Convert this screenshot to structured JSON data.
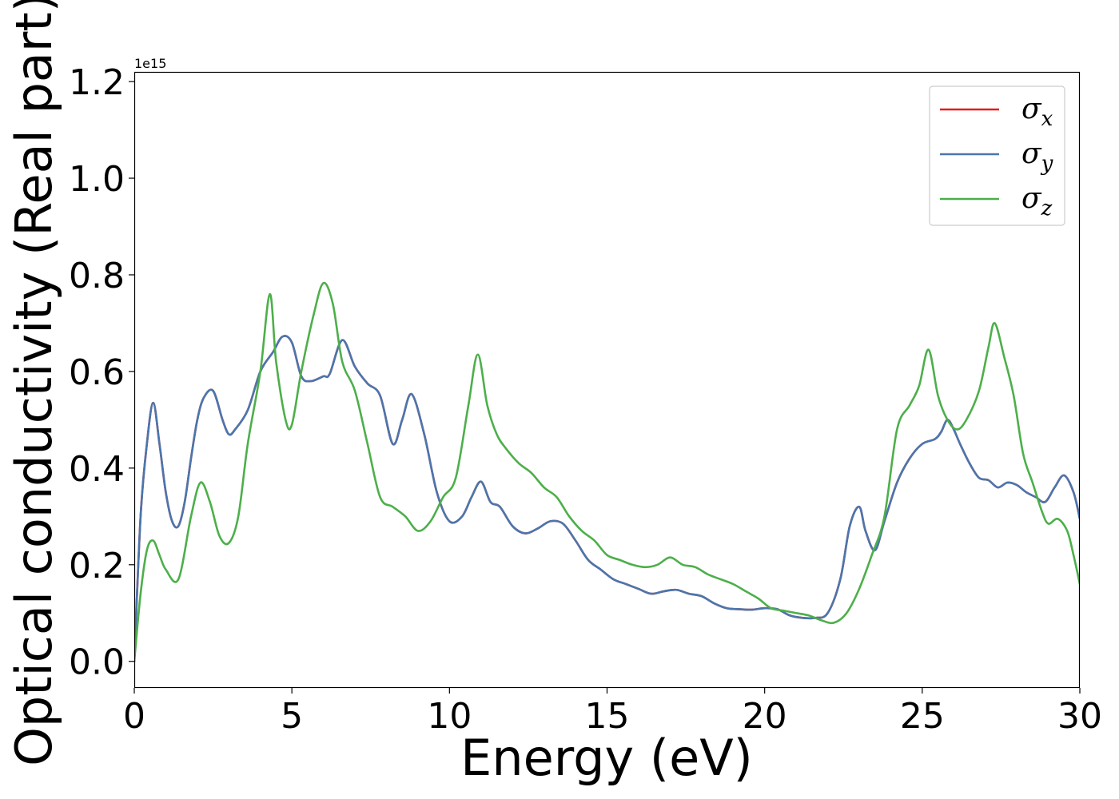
{
  "chart_data": {
    "type": "line",
    "xlabel": "Energy (eV)",
    "ylabel": "Optical conductivity (Real part)",
    "offset_text": "1e15",
    "xlim": [
      0,
      30
    ],
    "ylim": [
      -0.055,
      1.22
    ],
    "y_scale_factor": "1e15",
    "x_ticks": [
      0,
      5,
      10,
      15,
      20,
      25,
      30
    ],
    "x_tick_labels": [
      "0",
      "5",
      "10",
      "15",
      "20",
      "25",
      "30"
    ],
    "y_ticks": [
      0.0,
      0.2,
      0.4,
      0.6,
      0.8,
      1.0,
      1.2
    ],
    "y_tick_labels": [
      "0.0",
      "0.2",
      "0.4",
      "0.6",
      "0.8",
      "1.0",
      "1.2"
    ],
    "grid": false,
    "legend_position": "top-right",
    "series": [
      {
        "name": "σx",
        "legend_base": "σ",
        "legend_sub": "x",
        "color": "#e41a1c",
        "x": [
          0,
          0.2,
          0.4,
          0.6,
          0.8,
          1.0,
          1.2,
          1.4,
          1.6,
          1.8,
          2.0,
          2.2,
          2.5,
          2.8,
          3.0,
          3.2,
          3.6,
          4.0,
          4.4,
          4.7,
          5.0,
          5.3,
          5.6,
          6.0,
          6.2,
          6.6,
          7.0,
          7.4,
          7.8,
          8.2,
          8.5,
          8.8,
          9.2,
          9.6,
          10.0,
          10.4,
          10.7,
          11.0,
          11.3,
          11.6,
          12.0,
          12.4,
          12.8,
          13.2,
          13.6,
          14.0,
          14.4,
          14.8,
          15.2,
          15.6,
          16.0,
          16.4,
          16.8,
          17.2,
          17.6,
          18.0,
          18.4,
          18.8,
          19.2,
          19.6,
          20.0,
          20.4,
          20.8,
          21.2,
          21.6,
          22.0,
          22.4,
          22.7,
          23.0,
          23.2,
          23.5,
          23.8,
          24.2,
          24.6,
          25.0,
          25.4,
          25.6,
          25.8,
          26.0,
          26.2,
          26.5,
          26.8,
          27.1,
          27.4,
          27.7,
          28.0,
          28.3,
          28.6,
          28.9,
          29.2,
          29.5,
          29.8,
          30.0
        ],
        "values": [
          0.0,
          0.3,
          0.45,
          0.535,
          0.45,
          0.35,
          0.29,
          0.28,
          0.33,
          0.42,
          0.5,
          0.545,
          0.56,
          0.5,
          0.47,
          0.48,
          0.52,
          0.6,
          0.64,
          0.672,
          0.66,
          0.59,
          0.58,
          0.59,
          0.595,
          0.665,
          0.61,
          0.575,
          0.55,
          0.45,
          0.5,
          0.553,
          0.47,
          0.35,
          0.29,
          0.3,
          0.34,
          0.372,
          0.33,
          0.32,
          0.28,
          0.265,
          0.275,
          0.29,
          0.285,
          0.25,
          0.21,
          0.19,
          0.17,
          0.16,
          0.15,
          0.14,
          0.145,
          0.148,
          0.14,
          0.135,
          0.12,
          0.11,
          0.108,
          0.107,
          0.11,
          0.108,
          0.095,
          0.09,
          0.09,
          0.1,
          0.17,
          0.28,
          0.32,
          0.27,
          0.23,
          0.29,
          0.37,
          0.42,
          0.45,
          0.46,
          0.475,
          0.5,
          0.48,
          0.45,
          0.41,
          0.38,
          0.375,
          0.36,
          0.37,
          0.365,
          0.35,
          0.34,
          0.33,
          0.36,
          0.385,
          0.35,
          0.295
        ]
      },
      {
        "name": "σy",
        "legend_base": "σ",
        "legend_sub": "y",
        "color": "#4a76ad",
        "x": [
          0,
          0.2,
          0.4,
          0.6,
          0.8,
          1.0,
          1.2,
          1.4,
          1.6,
          1.8,
          2.0,
          2.2,
          2.5,
          2.8,
          3.0,
          3.2,
          3.6,
          4.0,
          4.4,
          4.7,
          5.0,
          5.3,
          5.6,
          6.0,
          6.2,
          6.6,
          7.0,
          7.4,
          7.8,
          8.2,
          8.5,
          8.8,
          9.2,
          9.6,
          10.0,
          10.4,
          10.7,
          11.0,
          11.3,
          11.6,
          12.0,
          12.4,
          12.8,
          13.2,
          13.6,
          14.0,
          14.4,
          14.8,
          15.2,
          15.6,
          16.0,
          16.4,
          16.8,
          17.2,
          17.6,
          18.0,
          18.4,
          18.8,
          19.2,
          19.6,
          20.0,
          20.4,
          20.8,
          21.2,
          21.6,
          22.0,
          22.4,
          22.7,
          23.0,
          23.2,
          23.5,
          23.8,
          24.2,
          24.6,
          25.0,
          25.4,
          25.6,
          25.8,
          26.0,
          26.2,
          26.5,
          26.8,
          27.1,
          27.4,
          27.7,
          28.0,
          28.3,
          28.6,
          28.9,
          29.2,
          29.5,
          29.8,
          30.0
        ],
        "values": [
          0.0,
          0.3,
          0.45,
          0.535,
          0.45,
          0.35,
          0.29,
          0.28,
          0.33,
          0.42,
          0.5,
          0.545,
          0.56,
          0.5,
          0.47,
          0.48,
          0.52,
          0.6,
          0.64,
          0.672,
          0.66,
          0.59,
          0.58,
          0.59,
          0.595,
          0.665,
          0.61,
          0.575,
          0.55,
          0.45,
          0.5,
          0.553,
          0.47,
          0.35,
          0.29,
          0.3,
          0.34,
          0.372,
          0.33,
          0.32,
          0.28,
          0.265,
          0.275,
          0.29,
          0.285,
          0.25,
          0.21,
          0.19,
          0.17,
          0.16,
          0.15,
          0.14,
          0.145,
          0.148,
          0.14,
          0.135,
          0.12,
          0.11,
          0.108,
          0.107,
          0.11,
          0.108,
          0.095,
          0.09,
          0.09,
          0.1,
          0.17,
          0.28,
          0.32,
          0.27,
          0.23,
          0.29,
          0.37,
          0.42,
          0.45,
          0.46,
          0.475,
          0.5,
          0.48,
          0.45,
          0.41,
          0.38,
          0.375,
          0.36,
          0.37,
          0.365,
          0.35,
          0.34,
          0.33,
          0.36,
          0.385,
          0.35,
          0.295
        ]
      },
      {
        "name": "σz",
        "legend_base": "σ",
        "legend_sub": "z",
        "color": "#4daf4a",
        "x": [
          0,
          0.2,
          0.4,
          0.6,
          0.8,
          1.0,
          1.4,
          1.8,
          2.1,
          2.4,
          2.7,
          3.0,
          3.3,
          3.6,
          4.0,
          4.3,
          4.5,
          4.8,
          5.0,
          5.3,
          5.7,
          6.0,
          6.3,
          6.6,
          7.0,
          7.4,
          7.8,
          8.2,
          8.6,
          9.0,
          9.4,
          9.8,
          10.2,
          10.6,
          10.9,
          11.2,
          11.5,
          11.8,
          12.2,
          12.6,
          13.0,
          13.4,
          13.8,
          14.2,
          14.6,
          15.0,
          15.4,
          15.8,
          16.2,
          16.6,
          17.0,
          17.4,
          17.8,
          18.2,
          18.6,
          19.0,
          19.4,
          19.8,
          20.2,
          20.6,
          21.0,
          21.4,
          21.8,
          22.2,
          22.6,
          23.0,
          23.4,
          23.8,
          24.2,
          24.6,
          24.9,
          25.2,
          25.5,
          25.8,
          26.1,
          26.4,
          26.8,
          27.1,
          27.3,
          27.6,
          27.9,
          28.2,
          28.5,
          28.8,
          29.0,
          29.3,
          29.6,
          29.8,
          30.0
        ],
        "values": [
          0.0,
          0.14,
          0.23,
          0.25,
          0.22,
          0.19,
          0.17,
          0.3,
          0.37,
          0.33,
          0.26,
          0.245,
          0.3,
          0.45,
          0.6,
          0.76,
          0.62,
          0.5,
          0.49,
          0.6,
          0.72,
          0.783,
          0.74,
          0.62,
          0.56,
          0.45,
          0.34,
          0.32,
          0.3,
          0.27,
          0.29,
          0.34,
          0.38,
          0.53,
          0.635,
          0.53,
          0.47,
          0.44,
          0.41,
          0.39,
          0.36,
          0.34,
          0.3,
          0.27,
          0.25,
          0.22,
          0.21,
          0.2,
          0.195,
          0.2,
          0.215,
          0.2,
          0.195,
          0.18,
          0.17,
          0.16,
          0.145,
          0.13,
          0.11,
          0.105,
          0.1,
          0.095,
          0.085,
          0.08,
          0.1,
          0.15,
          0.22,
          0.3,
          0.48,
          0.53,
          0.57,
          0.645,
          0.55,
          0.5,
          0.48,
          0.5,
          0.56,
          0.65,
          0.7,
          0.63,
          0.55,
          0.43,
          0.37,
          0.31,
          0.285,
          0.295,
          0.27,
          0.22,
          0.16
        ]
      }
    ]
  }
}
